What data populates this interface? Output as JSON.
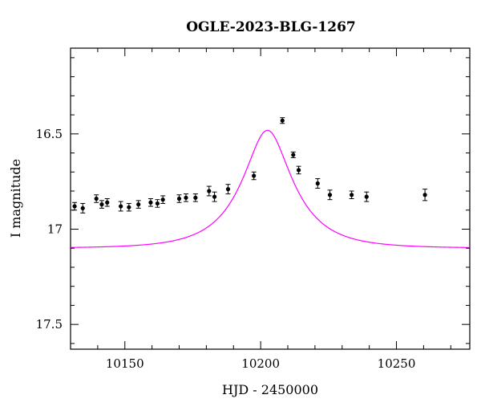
{
  "chart_data": {
    "type": "scatter",
    "title": "OGLE-2023-BLG-1267",
    "xlabel": "HJD - 2450000",
    "ylabel": "I magnitude",
    "xlim": [
      10130,
      10277
    ],
    "ylim": [
      17.63,
      16.05
    ],
    "y_inverted": true,
    "grid": false,
    "x_ticks": [
      10150,
      10200,
      10250
    ],
    "x_tick_labels": [
      "10150",
      "10200",
      "10250"
    ],
    "y_ticks": [
      16.5,
      17,
      17.5
    ],
    "y_tick_labels": [
      "16.5",
      "17",
      "17.5"
    ],
    "series": [
      {
        "kind": "points",
        "color": "#000000",
        "x": [
          10131.5,
          10134.5,
          10139.5,
          10141.5,
          10143.5,
          10148.5,
          10151.5,
          10155.0,
          10159.5,
          10162.0,
          10164.0,
          10170.0,
          10172.5,
          10176.0,
          10181.0,
          10183.0,
          10188.0,
          10197.5,
          10208.0,
          10212.0,
          10214.0,
          10221.0,
          10225.5,
          10233.5,
          10239.0,
          10260.5
        ],
        "y": [
          16.88,
          16.89,
          16.84,
          16.87,
          16.86,
          16.88,
          16.885,
          16.87,
          16.86,
          16.865,
          16.845,
          16.84,
          16.835,
          16.835,
          16.8,
          16.83,
          16.79,
          16.72,
          16.43,
          16.61,
          16.69,
          16.76,
          16.82,
          16.82,
          16.83,
          16.82
        ],
        "yerr": [
          0.02,
          0.025,
          0.02,
          0.02,
          0.02,
          0.025,
          0.02,
          0.02,
          0.02,
          0.02,
          0.02,
          0.02,
          0.02,
          0.02,
          0.025,
          0.025,
          0.025,
          0.02,
          0.015,
          0.015,
          0.02,
          0.025,
          0.025,
          0.02,
          0.025,
          0.03
        ]
      },
      {
        "kind": "model",
        "color": "#ff00ff",
        "t0": 10202.5,
        "u0": 0.42,
        "tE": 19.0,
        "fs": 0.5,
        "i0": 17.1
      }
    ]
  }
}
